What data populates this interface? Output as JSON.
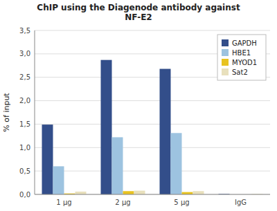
{
  "chart_data": {
    "type": "bar",
    "title": "ChIP using the Diagenode antibody against\nNF-E2",
    "y_label": "% of input",
    "categories": [
      "1 μg",
      "2 μg",
      "5 μg",
      "IgG"
    ],
    "series": [
      {
        "name": "GAPDH",
        "color": "#334E8A",
        "values": [
          1.49,
          2.87,
          2.68,
          0.01
        ]
      },
      {
        "name": "HBE1",
        "color": "#9DC3E0",
        "values": [
          0.6,
          1.22,
          1.31,
          0.0
        ]
      },
      {
        "name": "MYOD1",
        "color": "#E8C320",
        "values": [
          0.02,
          0.07,
          0.05,
          0.0
        ]
      },
      {
        "name": "Sat2",
        "color": "#E8E0BC",
        "values": [
          0.06,
          0.08,
          0.07,
          0.01
        ]
      }
    ],
    "ylim": [
      0,
      3.5
    ],
    "yticks": [
      {
        "value": 0.0,
        "label": "0,0"
      },
      {
        "value": 0.5,
        "label": "0,5"
      },
      {
        "value": 1.0,
        "label": "1,0"
      },
      {
        "value": 1.5,
        "label": "1,5"
      },
      {
        "value": 2.0,
        "label": "2,0"
      },
      {
        "value": 2.5,
        "label": "2,5"
      },
      {
        "value": 3.0,
        "label": "3,0"
      },
      {
        "value": 3.5,
        "label": "3,5"
      }
    ],
    "grid": true,
    "legend": "upper right"
  }
}
